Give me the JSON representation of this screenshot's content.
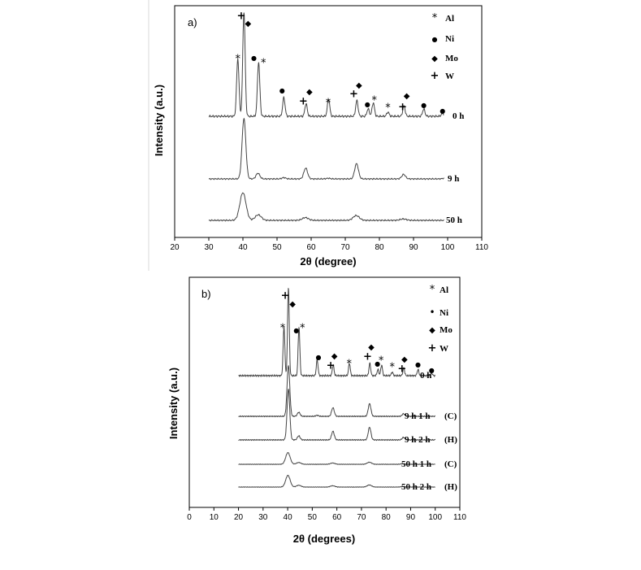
{
  "chart_data": [
    {
      "type": "line",
      "panel_label": "a)",
      "xlabel": "2θ (degree)",
      "ylabel": "Intensity (a.u.)",
      "xlim": [
        20,
        110
      ],
      "xticks": [
        20,
        30,
        40,
        50,
        60,
        70,
        80,
        90,
        100,
        110
      ],
      "legend": [
        {
          "symbol": "*",
          "label": "Al"
        },
        {
          "symbol": "●",
          "label": "Ni"
        },
        {
          "symbol": "◆",
          "label": "Mo"
        },
        {
          "symbol": "+",
          "label": "W"
        }
      ],
      "legend_position": "top-right",
      "series": [
        {
          "name": "0 h",
          "peaks": [
            [
              38.5,
              0.55
            ],
            [
              40.3,
              1.0
            ],
            [
              44.6,
              0.52
            ],
            [
              52.0,
              0.18
            ],
            [
              58.5,
              0.12
            ],
            [
              65.1,
              0.17
            ],
            [
              73.4,
              0.15
            ],
            [
              76.7,
              0.07
            ],
            [
              78.2,
              0.13
            ],
            [
              82.5,
              0.04
            ],
            [
              87.2,
              0.1
            ],
            [
              93.0,
              0.07
            ],
            [
              98.5,
              0.03
            ]
          ]
        },
        {
          "name": "9 h",
          "peaks": [
            [
              40.3,
              0.95
            ],
            [
              44.4,
              0.09
            ],
            [
              52.0,
              0.02
            ],
            [
              58.4,
              0.17
            ],
            [
              65.0,
              0.01
            ],
            [
              73.3,
              0.24
            ],
            [
              87.1,
              0.07
            ],
            [
              99.0,
              0.01
            ]
          ]
        },
        {
          "name": "50 h",
          "peaks": [
            [
              40.0,
              0.4
            ],
            [
              44.5,
              0.08
            ],
            [
              58.3,
              0.04
            ],
            [
              73.2,
              0.07
            ],
            [
              87.0,
              0.02
            ]
          ]
        }
      ],
      "markers": [
        {
          "symbol": "+",
          "x": 39.5
        },
        {
          "symbol": "◆",
          "x": 41.5
        },
        {
          "symbol": "*",
          "x": 38.5
        },
        {
          "symbol": "●",
          "x": 43.2
        },
        {
          "symbol": "*",
          "x": 46.0
        },
        {
          "symbol": "●",
          "x": 51.5
        },
        {
          "symbol": "◆",
          "x": 59.5
        },
        {
          "symbol": "+",
          "x": 57.7
        },
        {
          "symbol": "*",
          "x": 65.0
        },
        {
          "symbol": "+",
          "x": 72.5
        },
        {
          "symbol": "◆",
          "x": 74.0
        },
        {
          "symbol": "●",
          "x": 76.5
        },
        {
          "symbol": "*",
          "x": 78.5
        },
        {
          "symbol": "*",
          "x": 82.5
        },
        {
          "symbol": "+",
          "x": 86.8
        },
        {
          "symbol": "◆",
          "x": 88.0
        },
        {
          "symbol": "●",
          "x": 93.0
        },
        {
          "symbol": "●",
          "x": 98.5
        }
      ]
    },
    {
      "type": "line",
      "panel_label": "b)",
      "xlabel": "2θ (degrees)",
      "ylabel": "Intensity (a.u.)",
      "xlim": [
        0,
        110
      ],
      "xticks": [
        0,
        10,
        20,
        30,
        40,
        50,
        60,
        70,
        80,
        90,
        100,
        110
      ],
      "legend": [
        {
          "symbol": "*",
          "label": "Al"
        },
        {
          "symbol": "•",
          "label": "Ni"
        },
        {
          "symbol": "◆",
          "label": "Mo"
        },
        {
          "symbol": "+",
          "label": "W"
        }
      ],
      "legend_position": "top-right",
      "series": [
        {
          "name": "0 h",
          "tag": "",
          "peaks": [
            [
              38.5,
              0.55
            ],
            [
              40.3,
              1.0
            ],
            [
              44.6,
              0.55
            ],
            [
              52.0,
              0.18
            ],
            [
              58.5,
              0.12
            ],
            [
              65.1,
              0.14
            ],
            [
              73.4,
              0.14
            ],
            [
              76.7,
              0.07
            ],
            [
              78.2,
              0.12
            ],
            [
              82.5,
              0.04
            ],
            [
              87.2,
              0.09
            ],
            [
              93.0,
              0.07
            ],
            [
              98.5,
              0.03
            ]
          ]
        },
        {
          "name": "9 h 1 h",
          "tag": "(C)",
          "peaks": [
            [
              40.3,
              1.0
            ],
            [
              44.5,
              0.08
            ],
            [
              52.0,
              0.02
            ],
            [
              58.4,
              0.17
            ],
            [
              73.3,
              0.25
            ],
            [
              87.1,
              0.05
            ]
          ]
        },
        {
          "name": "9 h 2 h",
          "tag": "(H)",
          "peaks": [
            [
              40.3,
              1.0
            ],
            [
              44.5,
              0.08
            ],
            [
              58.4,
              0.17
            ],
            [
              73.3,
              0.25
            ],
            [
              87.1,
              0.05
            ]
          ]
        },
        {
          "name": "50 h 1 h",
          "tag": "(C)",
          "peaks": [
            [
              40.1,
              0.45
            ],
            [
              44.5,
              0.07
            ],
            [
              58.3,
              0.05
            ],
            [
              73.2,
              0.08
            ],
            [
              87.0,
              0.02
            ]
          ]
        },
        {
          "name": "50 h 2 h",
          "tag": "(H)",
          "peaks": [
            [
              40.1,
              0.45
            ],
            [
              44.5,
              0.07
            ],
            [
              58.3,
              0.05
            ],
            [
              73.2,
              0.08
            ],
            [
              87.0,
              0.02
            ]
          ]
        }
      ],
      "markers": [
        {
          "symbol": "+",
          "x": 39.0
        },
        {
          "symbol": "◆",
          "x": 42.0
        },
        {
          "symbol": "*",
          "x": 38.0
        },
        {
          "symbol": "●",
          "x": 43.5
        },
        {
          "symbol": "*",
          "x": 46.0
        },
        {
          "symbol": "●",
          "x": 52.5
        },
        {
          "symbol": "+",
          "x": 57.5
        },
        {
          "symbol": "◆",
          "x": 59.0
        },
        {
          "symbol": "*",
          "x": 65.0
        },
        {
          "symbol": "+",
          "x": 72.5
        },
        {
          "symbol": "◆",
          "x": 74.0
        },
        {
          "symbol": "●",
          "x": 76.5
        },
        {
          "symbol": "*",
          "x": 78.0
        },
        {
          "symbol": "*",
          "x": 82.5
        },
        {
          "symbol": "+",
          "x": 86.5
        },
        {
          "symbol": "◆",
          "x": 87.5
        },
        {
          "symbol": "●",
          "x": 93.0
        },
        {
          "symbol": "●",
          "x": 98.5
        }
      ]
    }
  ]
}
